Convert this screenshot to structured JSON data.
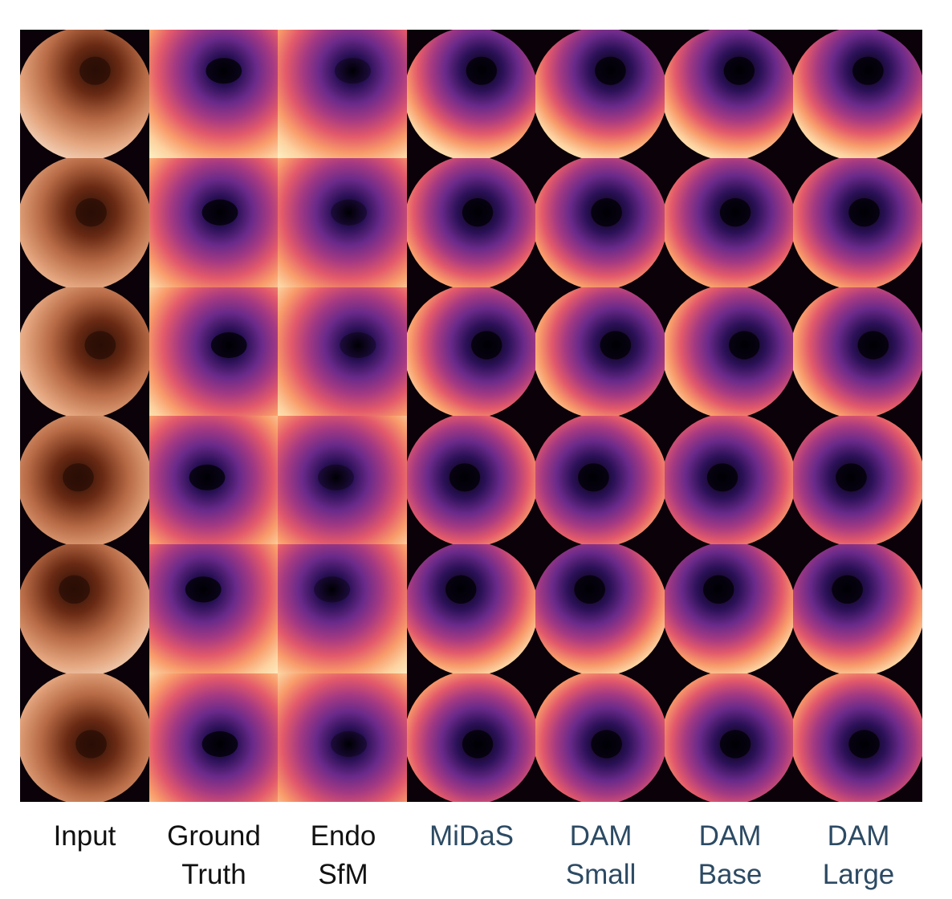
{
  "figure": {
    "columns": [
      {
        "id": "input",
        "lines": [
          "Input"
        ],
        "color": "#111111",
        "palette": "rgb"
      },
      {
        "id": "ground-truth",
        "lines": [
          "Ground",
          "Truth"
        ],
        "color": "#111111",
        "palette": "magma"
      },
      {
        "id": "endo-sfm",
        "lines": [
          "Endo",
          "SfM"
        ],
        "color": "#111111",
        "palette": "magma"
      },
      {
        "id": "midas",
        "lines": [
          "MiDaS"
        ],
        "color": "#2c4a63",
        "palette": "magma"
      },
      {
        "id": "dam-small",
        "lines": [
          "DAM",
          "Small"
        ],
        "color": "#2c4a63",
        "palette": "magma"
      },
      {
        "id": "dam-base",
        "lines": [
          "DAM",
          "Base"
        ],
        "color": "#2c4a63",
        "palette": "magma"
      },
      {
        "id": "dam-large",
        "lines": [
          "DAM",
          "Large"
        ],
        "color": "#2c4a63",
        "palette": "magma"
      }
    ],
    "row_count": 6,
    "colors": {
      "rgb": [
        "#2a0e05",
        "#6a2a14",
        "#b76a45",
        "#e3a47d",
        "#f6dcc6"
      ],
      "magma": [
        "#000004",
        "#2b1157",
        "#6a2a8a",
        "#a63a82",
        "#e2596b",
        "#f89a6a",
        "#fcd3a1",
        "#fdf2c7"
      ]
    }
  }
}
